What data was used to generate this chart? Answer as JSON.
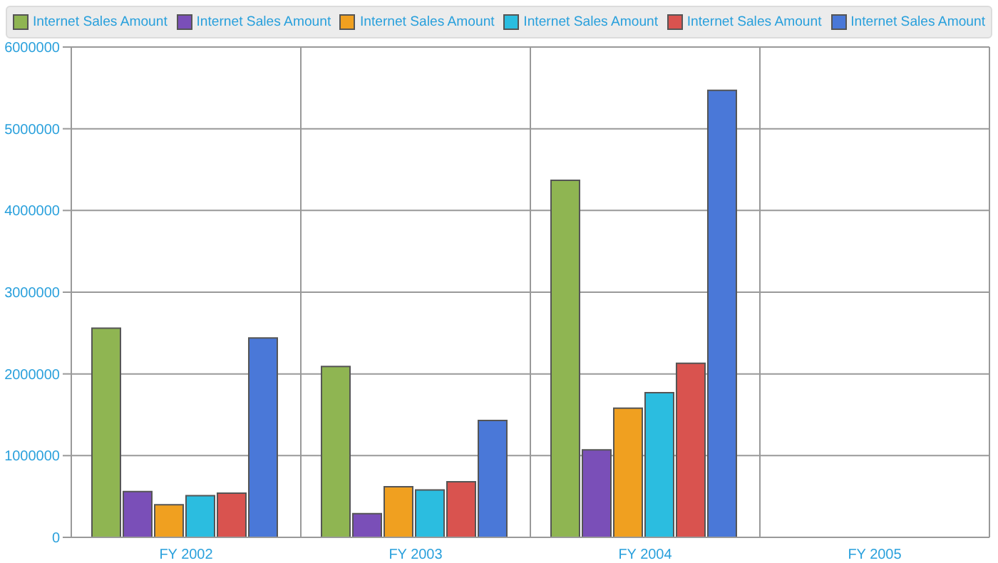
{
  "chart_data": {
    "type": "bar",
    "categories": [
      "FY 2002",
      "FY 2003",
      "FY 2004",
      "FY 2005"
    ],
    "series": [
      {
        "name": "Internet Sales Amount",
        "color": "#8fb552",
        "values": [
          2560000,
          2090000,
          4370000,
          null
        ]
      },
      {
        "name": "Internet Sales Amount",
        "color": "#7a4fb8",
        "values": [
          560000,
          290000,
          1070000,
          null
        ]
      },
      {
        "name": "Internet Sales Amount",
        "color": "#f0a020",
        "values": [
          400000,
          620000,
          1580000,
          null
        ]
      },
      {
        "name": "Internet Sales Amount",
        "color": "#2bbde0",
        "values": [
          510000,
          580000,
          1770000,
          null
        ]
      },
      {
        "name": "Internet Sales Amount",
        "color": "#d9534f",
        "values": [
          540000,
          680000,
          2130000,
          null
        ]
      },
      {
        "name": "Internet Sales Amount",
        "color": "#4a78d8",
        "values": [
          2440000,
          1430000,
          5470000,
          null
        ]
      }
    ],
    "ylim": [
      0,
      6000000
    ],
    "yticks": [
      0,
      1000000,
      2000000,
      3000000,
      4000000,
      5000000,
      6000000
    ],
    "grid": true,
    "legend": "top"
  }
}
